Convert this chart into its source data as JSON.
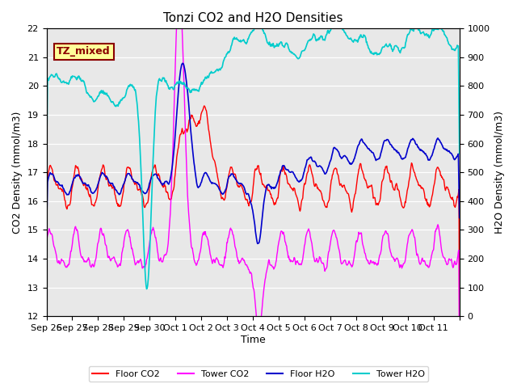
{
  "title": "Tonzi CO2 and H2O Densities",
  "xlabel": "Time",
  "ylabel_left": "CO2 Density (mmol/m3)",
  "ylabel_right": "H2O Density (mmol/m3)",
  "ylim_left": [
    12.0,
    22.0
  ],
  "ylim_right": [
    0,
    1000
  ],
  "yticks_left": [
    12.0,
    13.0,
    14.0,
    15.0,
    16.0,
    17.0,
    18.0,
    19.0,
    20.0,
    21.0,
    22.0
  ],
  "yticks_right": [
    0,
    100,
    200,
    300,
    400,
    500,
    600,
    700,
    800,
    900,
    1000
  ],
  "annotation_text": "TZ_mixed",
  "annotation_color": "#8B0000",
  "annotation_bg": "#FFFF99",
  "colors": {
    "floor_co2": "#FF0000",
    "tower_co2": "#FF00FF",
    "floor_h2o": "#0000CC",
    "tower_h2o": "#00CCCC"
  },
  "legend_labels": [
    "Floor CO2",
    "Tower CO2",
    "Floor H2O",
    "Tower H2O"
  ],
  "background_color": "#E8E8E8",
  "grid_color": "#FFFFFF",
  "xtick_positions": [
    0,
    1,
    2,
    3,
    4,
    5,
    6,
    7,
    8,
    9,
    10,
    11,
    12,
    13,
    14,
    15,
    16
  ],
  "tick_labels": [
    "Sep 26",
    "Sep 27",
    "Sep 28",
    "Sep 29",
    "Sep 30",
    "Oct 1",
    "Oct 2",
    "Oct 3",
    "Oct 4",
    "Oct 5",
    "Oct 6",
    "Oct 7",
    "Oct 8",
    "Oct 9",
    "Oct 10",
    "Oct 11",
    ""
  ]
}
